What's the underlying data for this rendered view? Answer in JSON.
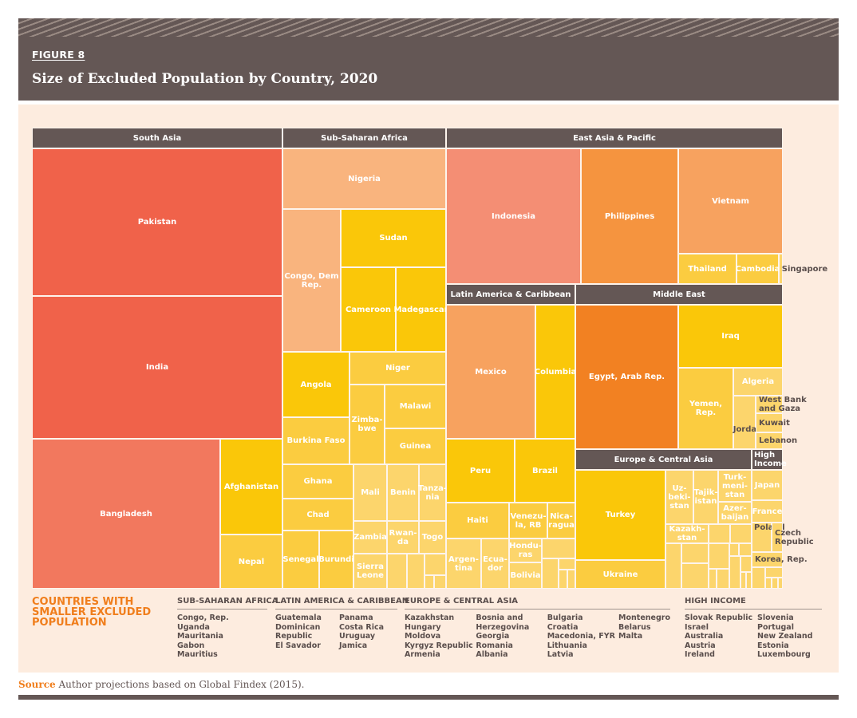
{
  "header": {
    "figure_label": "FIGURE 8",
    "title": "Size of Excluded Population by Country, 2020"
  },
  "colors": {
    "header_bg": "#645755",
    "panel_bg": "#fdecdf",
    "accent_orange": "#f07e1c",
    "red": "#f0624a",
    "salmon": "#f2785e",
    "light_salmon": "#f48e74",
    "peach": "#f9b47e",
    "orange": "#f5943f",
    "light_orange": "#f7a25f",
    "deep_orange": "#f28122",
    "gold": "#fac709",
    "yellow": "#fbcc40",
    "light_yellow": "#fcd56c"
  },
  "chart_data": {
    "type": "treemap",
    "title": "Size of Excluded Population by Country, 2020",
    "note": "Values are relative tile areas (approximate, estimated from the figure); no numeric labels shown",
    "regions": [
      {
        "name": "South Asia",
        "countries": [
          {
            "name": "Pakistan",
            "color": "red"
          },
          {
            "name": "India",
            "color": "red"
          },
          {
            "name": "Bangladesh",
            "color": "salmon"
          },
          {
            "name": "Afghanistan",
            "color": "gold"
          },
          {
            "name": "Nepal",
            "color": "yellow"
          }
        ]
      },
      {
        "name": "Sub-Saharan Africa",
        "countries": [
          {
            "name": "Nigeria",
            "color": "peach"
          },
          {
            "name": "Congo, Dem\nRep.",
            "color": "peach"
          },
          {
            "name": "Sudan",
            "color": "gold"
          },
          {
            "name": "Cameroon",
            "color": "gold"
          },
          {
            "name": "Madegascar",
            "color": "gold"
          },
          {
            "name": "Angola",
            "color": "gold"
          },
          {
            "name": "Niger",
            "color": "yellow"
          },
          {
            "name": "Burkina Faso",
            "color": "yellow"
          },
          {
            "name": "Zimba-\nbwe",
            "color": "yellow"
          },
          {
            "name": "Malawi",
            "color": "yellow"
          },
          {
            "name": "Guinea",
            "color": "yellow"
          },
          {
            "name": "Ghana",
            "color": "yellow"
          },
          {
            "name": "Chad",
            "color": "yellow"
          },
          {
            "name": "Senegal",
            "color": "yellow"
          },
          {
            "name": "Burundi",
            "color": "yellow"
          },
          {
            "name": "Mali",
            "color": "light_yellow"
          },
          {
            "name": "Benin",
            "color": "light_yellow"
          },
          {
            "name": "Tanza-\nnia",
            "color": "light_yellow"
          },
          {
            "name": "Zambia",
            "color": "light_yellow"
          },
          {
            "name": "Rwan-\nda",
            "color": "light_yellow"
          },
          {
            "name": "Togo",
            "color": "light_yellow"
          },
          {
            "name": "Sierra\nLeone",
            "color": "light_yellow"
          }
        ]
      },
      {
        "name": "East Asia & Pacific",
        "countries": [
          {
            "name": "Indonesia",
            "color": "light_salmon"
          },
          {
            "name": "Philippines",
            "color": "orange"
          },
          {
            "name": "Vietnam",
            "color": "light_orange"
          },
          {
            "name": "Thailand",
            "color": "yellow"
          },
          {
            "name": "Cambodia",
            "color": "yellow"
          },
          {
            "name": "Singapore",
            "color": "light_yellow"
          }
        ]
      },
      {
        "name": "Latin America & Caribbean",
        "countries": [
          {
            "name": "Mexico",
            "color": "light_orange"
          },
          {
            "name": "Columbia",
            "color": "gold"
          },
          {
            "name": "Peru",
            "color": "gold"
          },
          {
            "name": "Brazil",
            "color": "gold"
          },
          {
            "name": "Haiti",
            "color": "yellow"
          },
          {
            "name": "Venezu-\nla, RB",
            "color": "yellow"
          },
          {
            "name": "Nica-\nragua",
            "color": "yellow"
          },
          {
            "name": "Argen-\ntina",
            "color": "light_yellow"
          },
          {
            "name": "Ecua-\ndor",
            "color": "light_yellow"
          },
          {
            "name": "Hondu-\nras",
            "color": "light_yellow"
          },
          {
            "name": "Bolivia",
            "color": "light_yellow"
          }
        ]
      },
      {
        "name": "Middle East",
        "countries": [
          {
            "name": "Egypt, Arab Rep.",
            "color": "deep_orange"
          },
          {
            "name": "Iraq",
            "color": "gold"
          },
          {
            "name": "Yemen, Rep.",
            "color": "yellow"
          },
          {
            "name": "Algeria",
            "color": "light_yellow"
          },
          {
            "name": "Jordan",
            "color": "light_yellow"
          },
          {
            "name": "West Bank\nand Gaza",
            "color": "light_yellow"
          },
          {
            "name": "Kuwait",
            "color": "light_yellow"
          },
          {
            "name": "Lebanon",
            "color": "light_yellow"
          }
        ]
      },
      {
        "name": "Europe & Central Asia",
        "countries": [
          {
            "name": "Turkey",
            "color": "gold"
          },
          {
            "name": "Ukraine",
            "color": "yellow"
          },
          {
            "name": "Uz-\nbeki-\nstan",
            "color": "light_yellow"
          },
          {
            "name": "Tajik-\nistan",
            "color": "light_yellow"
          },
          {
            "name": "Turk-\nmeni-\nstan",
            "color": "light_yellow"
          },
          {
            "name": "Azer-\nbaijan",
            "color": "light_yellow"
          },
          {
            "name": "Kazakh-\nstan",
            "color": "light_yellow"
          }
        ]
      },
      {
        "name": "High\nIncome",
        "countries": [
          {
            "name": "Japan",
            "color": "light_yellow"
          },
          {
            "name": "France",
            "color": "light_yellow"
          },
          {
            "name": "Poland",
            "color": "light_yellow"
          },
          {
            "name": "Czech\nRepublic",
            "color": "light_yellow"
          },
          {
            "name": "Korea, Rep.",
            "color": "light_yellow"
          }
        ]
      }
    ]
  },
  "legend": {
    "title": "COUNTRIES WITH\nSMALLER EXCLUDED\nPOPULATION",
    "groups": [
      {
        "heading": "SUB-SAHARAN AFRICA",
        "columns": [
          [
            "Congo, Rep.",
            "Uganda",
            "Mauritania",
            "Gabon",
            "Mauritius"
          ]
        ]
      },
      {
        "heading": "LATIN AMERICA & CARIBBEAN",
        "columns": [
          [
            "Guatemala",
            "Dominican",
            "Republic",
            "El Savador"
          ],
          [
            "Panama",
            "Costa Rica",
            "Uruguay",
            "Jamica"
          ]
        ]
      },
      {
        "heading": "EUROPE & CENTRAL ASIA",
        "columns": [
          [
            "Kazakhstan",
            "Hungary",
            "Moldova",
            "Kyrgyz Republic",
            "Armenia"
          ],
          [
            "Bosnia and",
            "Herzegovina",
            "Georgia",
            "Romania",
            "Albania"
          ],
          [
            "Bulgaria",
            "Croatia",
            "Macedonia, FYR",
            "Lithuania",
            "Latvia"
          ],
          [
            "Montenegro",
            "Belarus",
            "Malta"
          ]
        ]
      },
      {
        "heading": "HIGH INCOME",
        "columns": [
          [
            "Slovak Republic",
            "Israel",
            "Australia",
            "Austria",
            "Ireland"
          ],
          [
            "Slovenia",
            "Portugal",
            "New Zealand",
            "Estonia",
            "Luxembourg"
          ]
        ]
      }
    ]
  },
  "source": {
    "label": "Source",
    "text": " Author projections based on Global Findex (2015)."
  }
}
